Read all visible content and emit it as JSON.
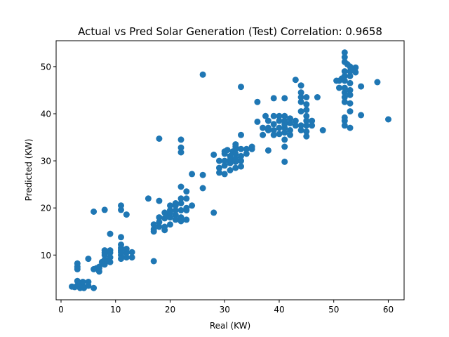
{
  "chart_data": {
    "type": "scatter",
    "title": "Actual vs Pred Solar Generation (Test) Correlation: 0.9658",
    "xlabel": "Real (KW)",
    "ylabel": "Predicted (KW)",
    "xlim": [
      -0.9,
      62.9
    ],
    "ylim": [
      0.5,
      55.5
    ],
    "xticks": [
      0,
      10,
      20,
      30,
      40,
      50,
      60
    ],
    "yticks": [
      10,
      20,
      30,
      40,
      50
    ],
    "grid": false,
    "marker_color": "#1f77b4",
    "points": [
      [
        2,
        3.3
      ],
      [
        2.5,
        3.2
      ],
      [
        3,
        3.5
      ],
      [
        3,
        4.5
      ],
      [
        3,
        7
      ],
      [
        3,
        7.5
      ],
      [
        3,
        8.2
      ],
      [
        3.5,
        3
      ],
      [
        3.5,
        3.8
      ],
      [
        4,
        3.4
      ],
      [
        4,
        4.3
      ],
      [
        4.2,
        3
      ],
      [
        5,
        3.5
      ],
      [
        5,
        4.3
      ],
      [
        5,
        9.2
      ],
      [
        6,
        3
      ],
      [
        6,
        7
      ],
      [
        6,
        19.2
      ],
      [
        6.5,
        7.2
      ],
      [
        7,
        6.5
      ],
      [
        7,
        7.2
      ],
      [
        7,
        7.5
      ],
      [
        7.5,
        8.5
      ],
      [
        8,
        19.6
      ],
      [
        8,
        8
      ],
      [
        8,
        9
      ],
      [
        8,
        10
      ],
      [
        8,
        10.5
      ],
      [
        8,
        11
      ],
      [
        8.5,
        8.8
      ],
      [
        9,
        8.5
      ],
      [
        9,
        9.5
      ],
      [
        9,
        10.5
      ],
      [
        9,
        11
      ],
      [
        9,
        14.5
      ],
      [
        11,
        9.2
      ],
      [
        11,
        10
      ],
      [
        11,
        10.6
      ],
      [
        11,
        11
      ],
      [
        11,
        11.5
      ],
      [
        11,
        12.2
      ],
      [
        11,
        13.8
      ],
      [
        11,
        19.6
      ],
      [
        11,
        20.5
      ],
      [
        12,
        9.5
      ],
      [
        12,
        10.5
      ],
      [
        12,
        11.3
      ],
      [
        12,
        18.6
      ],
      [
        13,
        9.5
      ],
      [
        13,
        10.6
      ],
      [
        16,
        22
      ],
      [
        17,
        8.7
      ],
      [
        17,
        15
      ],
      [
        17,
        15.5
      ],
      [
        17,
        16.5
      ],
      [
        18,
        16
      ],
      [
        18,
        17
      ],
      [
        18,
        18
      ],
      [
        18,
        21.5
      ],
      [
        18,
        34.7
      ],
      [
        19,
        15.3
      ],
      [
        19,
        16
      ],
      [
        19,
        17.8
      ],
      [
        19,
        19
      ],
      [
        19.5,
        18.5
      ],
      [
        20,
        16.5
      ],
      [
        20,
        18
      ],
      [
        20,
        19
      ],
      [
        20,
        19.5
      ],
      [
        20,
        20.5
      ],
      [
        21,
        17.5
      ],
      [
        21,
        18.5
      ],
      [
        21,
        19.5
      ],
      [
        21,
        20.5
      ],
      [
        21,
        21
      ],
      [
        22,
        17.2
      ],
      [
        22,
        18
      ],
      [
        22,
        19.5
      ],
      [
        22,
        21
      ],
      [
        22,
        22
      ],
      [
        22,
        24.5
      ],
      [
        22,
        31.8
      ],
      [
        22,
        32.8
      ],
      [
        22,
        34.5
      ],
      [
        23,
        17.5
      ],
      [
        23,
        19.5
      ],
      [
        23,
        20
      ],
      [
        23,
        22
      ],
      [
        23,
        23.5
      ],
      [
        24,
        20.5
      ],
      [
        24,
        27.2
      ],
      [
        26,
        24.2
      ],
      [
        26,
        27
      ],
      [
        26,
        48.3
      ],
      [
        28,
        19
      ],
      [
        28,
        31.3
      ],
      [
        29,
        27.5
      ],
      [
        29,
        28.5
      ],
      [
        29,
        30
      ],
      [
        30,
        27.2
      ],
      [
        30,
        29
      ],
      [
        30,
        30
      ],
      [
        30,
        31.5
      ],
      [
        30,
        32
      ],
      [
        30.5,
        32.3
      ],
      [
        31,
        28
      ],
      [
        31,
        29.5
      ],
      [
        31,
        30.2
      ],
      [
        31,
        31
      ],
      [
        31.5,
        32
      ],
      [
        32,
        28.5
      ],
      [
        32,
        29.8
      ],
      [
        32,
        30.5
      ],
      [
        32,
        31.5
      ],
      [
        32,
        32.5
      ],
      [
        32,
        33
      ],
      [
        32,
        33.5
      ],
      [
        33,
        28.8
      ],
      [
        33,
        30
      ],
      [
        33,
        31
      ],
      [
        33,
        32.5
      ],
      [
        33,
        35.5
      ],
      [
        33,
        45.7
      ],
      [
        34,
        31.5
      ],
      [
        34,
        32.5
      ],
      [
        35,
        32.5
      ],
      [
        35,
        33
      ],
      [
        36,
        38.3
      ],
      [
        36,
        42.5
      ],
      [
        37,
        35.5
      ],
      [
        37,
        37
      ],
      [
        37.5,
        39.5
      ],
      [
        38,
        32.2
      ],
      [
        38,
        36.5
      ],
      [
        38,
        37
      ],
      [
        38,
        38.5
      ],
      [
        39,
        35.5
      ],
      [
        39,
        36.5
      ],
      [
        39,
        37.8
      ],
      [
        39,
        39.5
      ],
      [
        39,
        43.3
      ],
      [
        40,
        35.7
      ],
      [
        40,
        37
      ],
      [
        40,
        38.5
      ],
      [
        40,
        39.5
      ],
      [
        41,
        29.8
      ],
      [
        41,
        33
      ],
      [
        41,
        34.5
      ],
      [
        41,
        36
      ],
      [
        41,
        37
      ],
      [
        41,
        37.8
      ],
      [
        41,
        38.5
      ],
      [
        41,
        39.5
      ],
      [
        41,
        43.3
      ],
      [
        42,
        35.5
      ],
      [
        42,
        36.5
      ],
      [
        42,
        38
      ],
      [
        42,
        39
      ],
      [
        43,
        37.5
      ],
      [
        43,
        38.5
      ],
      [
        43,
        47.2
      ],
      [
        44,
        36.5
      ],
      [
        44,
        37.5
      ],
      [
        44,
        40.5
      ],
      [
        44,
        42.5
      ],
      [
        44,
        43.5
      ],
      [
        44,
        44.5
      ],
      [
        44,
        46
      ],
      [
        45,
        35.2
      ],
      [
        45,
        36.2
      ],
      [
        45,
        37.5
      ],
      [
        45,
        38.5
      ],
      [
        45,
        39.5
      ],
      [
        45,
        40.8
      ],
      [
        45,
        42
      ],
      [
        45,
        43.5
      ],
      [
        46,
        37.5
      ],
      [
        46,
        38.5
      ],
      [
        47,
        43.5
      ],
      [
        48,
        36.5
      ],
      [
        51,
        45.5
      ],
      [
        51,
        47
      ],
      [
        52,
        37.5
      ],
      [
        52,
        38.5
      ],
      [
        52,
        39.2
      ],
      [
        52,
        42.5
      ],
      [
        52,
        43.5
      ],
      [
        52,
        44.5
      ],
      [
        52,
        45.5
      ],
      [
        52,
        47
      ],
      [
        52,
        48
      ],
      [
        52,
        49
      ],
      [
        52,
        51
      ],
      [
        52,
        52
      ],
      [
        52,
        53
      ],
      [
        53,
        37
      ],
      [
        53,
        40.5
      ],
      [
        53,
        42.2
      ],
      [
        53,
        44
      ],
      [
        53,
        45
      ],
      [
        53,
        46.5
      ],
      [
        53,
        48
      ],
      [
        53,
        49
      ],
      [
        53,
        50
      ],
      [
        54,
        48.8
      ],
      [
        54,
        49.8
      ],
      [
        55,
        39.7
      ],
      [
        55,
        45.8
      ],
      [
        58,
        46.7
      ],
      [
        60,
        38.8
      ],
      [
        51.5,
        47.5
      ],
      [
        50.5,
        47
      ],
      [
        53.5,
        49.5
      ],
      [
        52.5,
        50.5
      ]
    ]
  }
}
